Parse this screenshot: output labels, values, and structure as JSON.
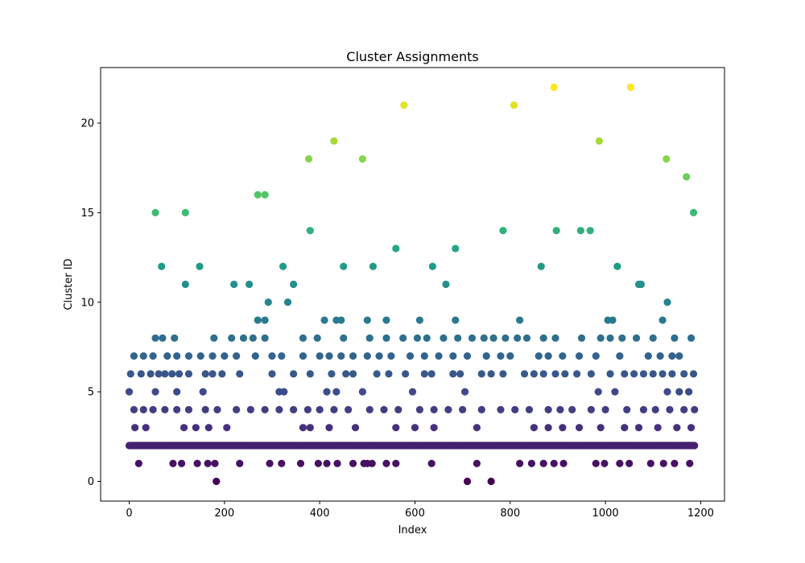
{
  "chart_data": {
    "type": "scatter",
    "title": "Cluster Assignments",
    "xlabel": "Index",
    "ylabel": "Cluster ID",
    "xlim": [
      -60,
      1250
    ],
    "ylim": [
      -1.1,
      23.1
    ],
    "xticks": [
      0,
      200,
      400,
      600,
      800,
      1000,
      1200
    ],
    "xtick_labels": [
      "0",
      "200",
      "400",
      "600",
      "800",
      "1000",
      "1200"
    ],
    "yticks": [
      0,
      5,
      10,
      15,
      20
    ],
    "ytick_labels": [
      "0",
      "5",
      "10",
      "15",
      "20"
    ],
    "grid": false,
    "legend": "none",
    "colormap": "viridis",
    "color_range": [
      0,
      22
    ],
    "colormap_stops": [
      "#440154",
      "#482878",
      "#3e4a89",
      "#31688e",
      "#26828e",
      "#1f9e89",
      "#35b779",
      "#6ece58",
      "#b5de2b",
      "#fde725"
    ],
    "n_points": 1188,
    "baseline_cluster": 2,
    "baseline_x_range": [
      0,
      1187
    ],
    "points": [
      {
        "x": 183,
        "y": 0
      },
      {
        "x": 710,
        "y": 0
      },
      {
        "x": 760,
        "y": 0
      },
      {
        "x": 20,
        "y": 1
      },
      {
        "x": 92,
        "y": 1
      },
      {
        "x": 110,
        "y": 1
      },
      {
        "x": 143,
        "y": 1
      },
      {
        "x": 165,
        "y": 1
      },
      {
        "x": 180,
        "y": 1
      },
      {
        "x": 232,
        "y": 1
      },
      {
        "x": 295,
        "y": 1
      },
      {
        "x": 320,
        "y": 1
      },
      {
        "x": 360,
        "y": 1
      },
      {
        "x": 397,
        "y": 1
      },
      {
        "x": 415,
        "y": 1
      },
      {
        "x": 437,
        "y": 1
      },
      {
        "x": 470,
        "y": 1
      },
      {
        "x": 493,
        "y": 1
      },
      {
        "x": 500,
        "y": 1
      },
      {
        "x": 510,
        "y": 1
      },
      {
        "x": 540,
        "y": 1
      },
      {
        "x": 560,
        "y": 1
      },
      {
        "x": 635,
        "y": 1
      },
      {
        "x": 730,
        "y": 1
      },
      {
        "x": 820,
        "y": 1
      },
      {
        "x": 845,
        "y": 1
      },
      {
        "x": 870,
        "y": 1
      },
      {
        "x": 892,
        "y": 1
      },
      {
        "x": 912,
        "y": 1
      },
      {
        "x": 980,
        "y": 1
      },
      {
        "x": 998,
        "y": 1
      },
      {
        "x": 1030,
        "y": 1
      },
      {
        "x": 1050,
        "y": 1
      },
      {
        "x": 1095,
        "y": 1
      },
      {
        "x": 1122,
        "y": 1
      },
      {
        "x": 1145,
        "y": 1
      },
      {
        "x": 1177,
        "y": 1
      },
      {
        "x": 12,
        "y": 3
      },
      {
        "x": 35,
        "y": 3
      },
      {
        "x": 115,
        "y": 3
      },
      {
        "x": 140,
        "y": 3
      },
      {
        "x": 167,
        "y": 3
      },
      {
        "x": 205,
        "y": 3
      },
      {
        "x": 365,
        "y": 3
      },
      {
        "x": 380,
        "y": 3
      },
      {
        "x": 420,
        "y": 3
      },
      {
        "x": 475,
        "y": 3
      },
      {
        "x": 560,
        "y": 3
      },
      {
        "x": 600,
        "y": 3
      },
      {
        "x": 640,
        "y": 3
      },
      {
        "x": 730,
        "y": 3
      },
      {
        "x": 850,
        "y": 3
      },
      {
        "x": 880,
        "y": 3
      },
      {
        "x": 910,
        "y": 3
      },
      {
        "x": 945,
        "y": 3
      },
      {
        "x": 990,
        "y": 3
      },
      {
        "x": 1040,
        "y": 3
      },
      {
        "x": 1070,
        "y": 3
      },
      {
        "x": 1110,
        "y": 3
      },
      {
        "x": 1150,
        "y": 3
      },
      {
        "x": 1180,
        "y": 3
      },
      {
        "x": 10,
        "y": 4
      },
      {
        "x": 30,
        "y": 4
      },
      {
        "x": 50,
        "y": 4
      },
      {
        "x": 75,
        "y": 4
      },
      {
        "x": 100,
        "y": 4
      },
      {
        "x": 125,
        "y": 4
      },
      {
        "x": 160,
        "y": 4
      },
      {
        "x": 185,
        "y": 4
      },
      {
        "x": 225,
        "y": 4
      },
      {
        "x": 255,
        "y": 4
      },
      {
        "x": 285,
        "y": 4
      },
      {
        "x": 315,
        "y": 4
      },
      {
        "x": 345,
        "y": 4
      },
      {
        "x": 375,
        "y": 4
      },
      {
        "x": 400,
        "y": 4
      },
      {
        "x": 430,
        "y": 4
      },
      {
        "x": 460,
        "y": 4
      },
      {
        "x": 505,
        "y": 4
      },
      {
        "x": 535,
        "y": 4
      },
      {
        "x": 565,
        "y": 4
      },
      {
        "x": 610,
        "y": 4
      },
      {
        "x": 640,
        "y": 4
      },
      {
        "x": 670,
        "y": 4
      },
      {
        "x": 700,
        "y": 4
      },
      {
        "x": 740,
        "y": 4
      },
      {
        "x": 780,
        "y": 4
      },
      {
        "x": 810,
        "y": 4
      },
      {
        "x": 840,
        "y": 4
      },
      {
        "x": 880,
        "y": 4
      },
      {
        "x": 905,
        "y": 4
      },
      {
        "x": 930,
        "y": 4
      },
      {
        "x": 970,
        "y": 4
      },
      {
        "x": 1000,
        "y": 4
      },
      {
        "x": 1045,
        "y": 4
      },
      {
        "x": 1080,
        "y": 4
      },
      {
        "x": 1105,
        "y": 4
      },
      {
        "x": 1135,
        "y": 4
      },
      {
        "x": 1165,
        "y": 4
      },
      {
        "x": 1187,
        "y": 4
      },
      {
        "x": 0,
        "y": 5
      },
      {
        "x": 55,
        "y": 5
      },
      {
        "x": 100,
        "y": 5
      },
      {
        "x": 155,
        "y": 5
      },
      {
        "x": 315,
        "y": 5
      },
      {
        "x": 325,
        "y": 5
      },
      {
        "x": 415,
        "y": 5
      },
      {
        "x": 435,
        "y": 5
      },
      {
        "x": 490,
        "y": 5
      },
      {
        "x": 595,
        "y": 5
      },
      {
        "x": 705,
        "y": 5
      },
      {
        "x": 985,
        "y": 5
      },
      {
        "x": 1020,
        "y": 5
      },
      {
        "x": 1130,
        "y": 5
      },
      {
        "x": 1155,
        "y": 5
      },
      {
        "x": 1175,
        "y": 5
      },
      {
        "x": 3,
        "y": 6
      },
      {
        "x": 25,
        "y": 6
      },
      {
        "x": 45,
        "y": 6
      },
      {
        "x": 62,
        "y": 6
      },
      {
        "x": 75,
        "y": 6
      },
      {
        "x": 90,
        "y": 6
      },
      {
        "x": 105,
        "y": 6
      },
      {
        "x": 125,
        "y": 6
      },
      {
        "x": 160,
        "y": 6
      },
      {
        "x": 175,
        "y": 6
      },
      {
        "x": 195,
        "y": 6
      },
      {
        "x": 232,
        "y": 6
      },
      {
        "x": 300,
        "y": 6
      },
      {
        "x": 345,
        "y": 6
      },
      {
        "x": 380,
        "y": 6
      },
      {
        "x": 425,
        "y": 6
      },
      {
        "x": 455,
        "y": 6
      },
      {
        "x": 470,
        "y": 6
      },
      {
        "x": 520,
        "y": 6
      },
      {
        "x": 545,
        "y": 6
      },
      {
        "x": 580,
        "y": 6
      },
      {
        "x": 620,
        "y": 6
      },
      {
        "x": 635,
        "y": 6
      },
      {
        "x": 680,
        "y": 6
      },
      {
        "x": 695,
        "y": 6
      },
      {
        "x": 740,
        "y": 6
      },
      {
        "x": 760,
        "y": 6
      },
      {
        "x": 785,
        "y": 6
      },
      {
        "x": 830,
        "y": 6
      },
      {
        "x": 850,
        "y": 6
      },
      {
        "x": 870,
        "y": 6
      },
      {
        "x": 895,
        "y": 6
      },
      {
        "x": 915,
        "y": 6
      },
      {
        "x": 940,
        "y": 6
      },
      {
        "x": 970,
        "y": 6
      },
      {
        "x": 1010,
        "y": 6
      },
      {
        "x": 1040,
        "y": 6
      },
      {
        "x": 1060,
        "y": 6
      },
      {
        "x": 1080,
        "y": 6
      },
      {
        "x": 1100,
        "y": 6
      },
      {
        "x": 1120,
        "y": 6
      },
      {
        "x": 1140,
        "y": 6
      },
      {
        "x": 1165,
        "y": 6
      },
      {
        "x": 1185,
        "y": 6
      },
      {
        "x": 10,
        "y": 7
      },
      {
        "x": 30,
        "y": 7
      },
      {
        "x": 50,
        "y": 7
      },
      {
        "x": 80,
        "y": 7
      },
      {
        "x": 100,
        "y": 7
      },
      {
        "x": 125,
        "y": 7
      },
      {
        "x": 150,
        "y": 7
      },
      {
        "x": 175,
        "y": 7
      },
      {
        "x": 200,
        "y": 7
      },
      {
        "x": 225,
        "y": 7
      },
      {
        "x": 265,
        "y": 7
      },
      {
        "x": 300,
        "y": 7
      },
      {
        "x": 320,
        "y": 7
      },
      {
        "x": 365,
        "y": 7
      },
      {
        "x": 400,
        "y": 7
      },
      {
        "x": 420,
        "y": 7
      },
      {
        "x": 445,
        "y": 7
      },
      {
        "x": 470,
        "y": 7
      },
      {
        "x": 500,
        "y": 7
      },
      {
        "x": 525,
        "y": 7
      },
      {
        "x": 550,
        "y": 7
      },
      {
        "x": 590,
        "y": 7
      },
      {
        "x": 620,
        "y": 7
      },
      {
        "x": 650,
        "y": 7
      },
      {
        "x": 680,
        "y": 7
      },
      {
        "x": 710,
        "y": 7
      },
      {
        "x": 750,
        "y": 7
      },
      {
        "x": 780,
        "y": 7
      },
      {
        "x": 800,
        "y": 7
      },
      {
        "x": 860,
        "y": 7
      },
      {
        "x": 880,
        "y": 7
      },
      {
        "x": 910,
        "y": 7
      },
      {
        "x": 945,
        "y": 7
      },
      {
        "x": 980,
        "y": 7
      },
      {
        "x": 1030,
        "y": 7
      },
      {
        "x": 1090,
        "y": 7
      },
      {
        "x": 1115,
        "y": 7
      },
      {
        "x": 1140,
        "y": 7
      },
      {
        "x": 1155,
        "y": 7
      },
      {
        "x": 55,
        "y": 8
      },
      {
        "x": 70,
        "y": 8
      },
      {
        "x": 95,
        "y": 8
      },
      {
        "x": 178,
        "y": 8
      },
      {
        "x": 215,
        "y": 8
      },
      {
        "x": 240,
        "y": 8
      },
      {
        "x": 260,
        "y": 8
      },
      {
        "x": 285,
        "y": 8
      },
      {
        "x": 365,
        "y": 8
      },
      {
        "x": 395,
        "y": 8
      },
      {
        "x": 450,
        "y": 8
      },
      {
        "x": 505,
        "y": 8
      },
      {
        "x": 540,
        "y": 8
      },
      {
        "x": 575,
        "y": 8
      },
      {
        "x": 605,
        "y": 8
      },
      {
        "x": 625,
        "y": 8
      },
      {
        "x": 660,
        "y": 8
      },
      {
        "x": 690,
        "y": 8
      },
      {
        "x": 720,
        "y": 8
      },
      {
        "x": 745,
        "y": 8
      },
      {
        "x": 765,
        "y": 8
      },
      {
        "x": 790,
        "y": 8
      },
      {
        "x": 815,
        "y": 8
      },
      {
        "x": 835,
        "y": 8
      },
      {
        "x": 870,
        "y": 8
      },
      {
        "x": 895,
        "y": 8
      },
      {
        "x": 950,
        "y": 8
      },
      {
        "x": 990,
        "y": 8
      },
      {
        "x": 1010,
        "y": 8
      },
      {
        "x": 1035,
        "y": 8
      },
      {
        "x": 1065,
        "y": 8
      },
      {
        "x": 1100,
        "y": 8
      },
      {
        "x": 1145,
        "y": 8
      },
      {
        "x": 1180,
        "y": 8
      },
      {
        "x": 270,
        "y": 9
      },
      {
        "x": 285,
        "y": 9
      },
      {
        "x": 410,
        "y": 9
      },
      {
        "x": 435,
        "y": 9
      },
      {
        "x": 445,
        "y": 9
      },
      {
        "x": 500,
        "y": 9
      },
      {
        "x": 540,
        "y": 9
      },
      {
        "x": 610,
        "y": 9
      },
      {
        "x": 685,
        "y": 9
      },
      {
        "x": 820,
        "y": 9
      },
      {
        "x": 1005,
        "y": 9
      },
      {
        "x": 1015,
        "y": 9
      },
      {
        "x": 1120,
        "y": 9
      },
      {
        "x": 292,
        "y": 10
      },
      {
        "x": 333,
        "y": 10
      },
      {
        "x": 1130,
        "y": 10
      },
      {
        "x": 118,
        "y": 11
      },
      {
        "x": 220,
        "y": 11
      },
      {
        "x": 252,
        "y": 11
      },
      {
        "x": 345,
        "y": 11
      },
      {
        "x": 665,
        "y": 11
      },
      {
        "x": 1070,
        "y": 11
      },
      {
        "x": 1075,
        "y": 11
      },
      {
        "x": 68,
        "y": 12
      },
      {
        "x": 148,
        "y": 12
      },
      {
        "x": 323,
        "y": 12
      },
      {
        "x": 450,
        "y": 12
      },
      {
        "x": 512,
        "y": 12
      },
      {
        "x": 637,
        "y": 12
      },
      {
        "x": 865,
        "y": 12
      },
      {
        "x": 1025,
        "y": 12
      },
      {
        "x": 560,
        "y": 13
      },
      {
        "x": 685,
        "y": 13
      },
      {
        "x": 380,
        "y": 14
      },
      {
        "x": 785,
        "y": 14
      },
      {
        "x": 897,
        "y": 14
      },
      {
        "x": 948,
        "y": 14
      },
      {
        "x": 968,
        "y": 14
      },
      {
        "x": 55,
        "y": 15
      },
      {
        "x": 118,
        "y": 15
      },
      {
        "x": 1185,
        "y": 15
      },
      {
        "x": 270,
        "y": 16
      },
      {
        "x": 285,
        "y": 16
      },
      {
        "x": 1170,
        "y": 17
      },
      {
        "x": 377,
        "y": 18
      },
      {
        "x": 490,
        "y": 18
      },
      {
        "x": 1128,
        "y": 18
      },
      {
        "x": 430,
        "y": 19
      },
      {
        "x": 987,
        "y": 19
      },
      {
        "x": 577,
        "y": 21
      },
      {
        "x": 808,
        "y": 21
      },
      {
        "x": 892,
        "y": 22
      },
      {
        "x": 1053,
        "y": 22
      }
    ]
  }
}
